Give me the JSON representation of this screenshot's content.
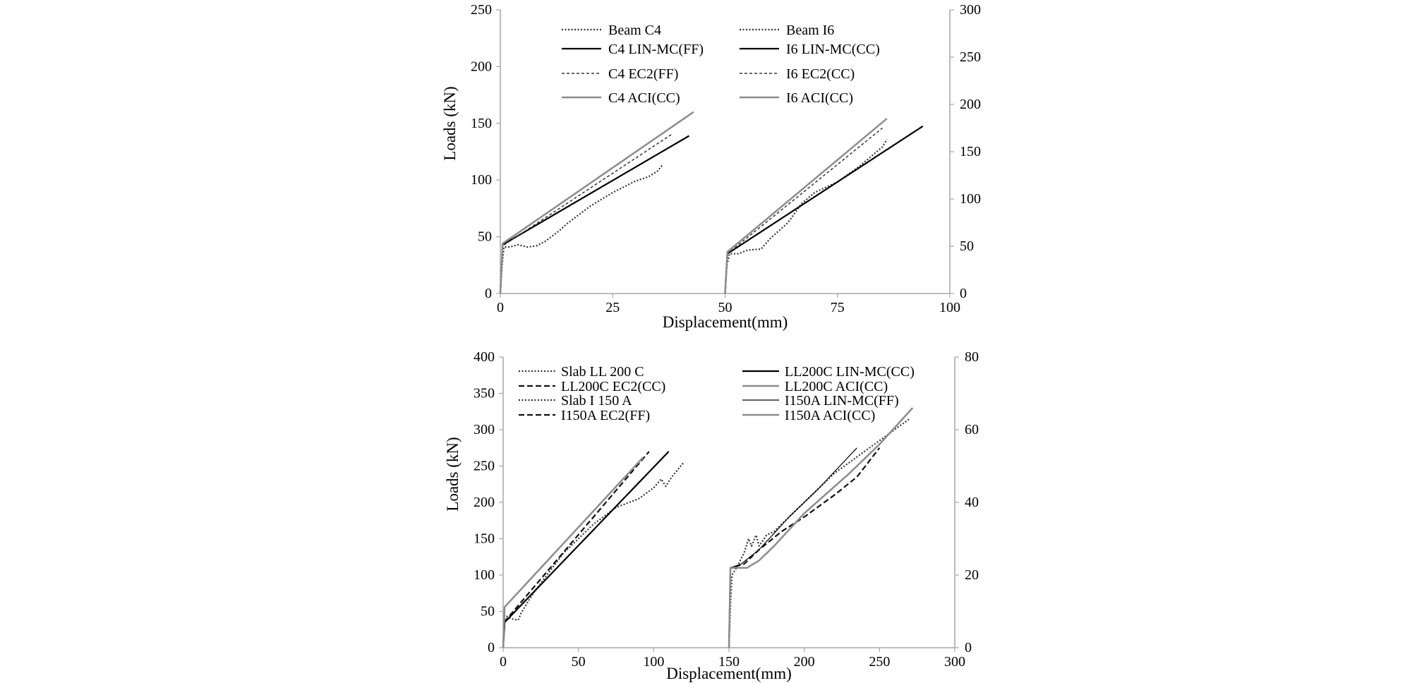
{
  "chart_data": [
    {
      "type": "line",
      "title": "",
      "xlabel": "Displacement(mm)",
      "ylabel": "Loads (kN)",
      "xlim": [
        0,
        100
      ],
      "ylim": [
        0,
        250
      ],
      "y2lim": [
        0,
        300
      ],
      "xticks": [
        "0",
        "25",
        "50",
        "75",
        "100"
      ],
      "yticks": [
        "0",
        "50",
        "100",
        "150",
        "200",
        "250"
      ],
      "y2ticks": [
        "0",
        "50",
        "100",
        "150",
        "200",
        "250",
        "300"
      ],
      "grid": false,
      "legend": "top",
      "series": [
        {
          "name": "Beam C4",
          "color": "#333333",
          "dash": "2,2.5",
          "width": 2.2,
          "axis": "left",
          "points": [
            [
              0,
              0
            ],
            [
              0.4,
              25
            ],
            [
              0.8,
              41
            ],
            [
              2,
              41
            ],
            [
              4,
              43
            ],
            [
              6,
              41
            ],
            [
              8,
              42
            ],
            [
              10,
              46
            ],
            [
              13,
              55
            ],
            [
              15,
              62
            ],
            [
              20,
              77
            ],
            [
              25,
              89
            ],
            [
              30,
              99
            ],
            [
              33,
              103
            ],
            [
              35,
              108
            ],
            [
              36,
              113
            ]
          ]
        },
        {
          "name": "C4 LIN-MC(FF)",
          "color": "#000000",
          "dash": "",
          "width": 2.2,
          "axis": "left",
          "points": [
            [
              0,
              0
            ],
            [
              0.5,
              43
            ],
            [
              42,
              139
            ]
          ]
        },
        {
          "name": "C4 EC2(FF)",
          "color": "#333333",
          "dash": "4,3",
          "width": 1.5,
          "axis": "left",
          "points": [
            [
              0,
              0
            ],
            [
              0.5,
              42
            ],
            [
              38,
              140
            ]
          ]
        },
        {
          "name": "C4 ACI(CC)",
          "color": "#8c8c8c",
          "dash": "",
          "width": 2.5,
          "axis": "left",
          "points": [
            [
              0,
              0
            ],
            [
              0.5,
              44
            ],
            [
              43,
              160
            ]
          ]
        },
        {
          "name": "Beam I6",
          "color": "#333333",
          "dash": "2,2.5",
          "width": 2.2,
          "axis": "right",
          "points": [
            [
              50,
              0
            ],
            [
              50.4,
              30
            ],
            [
              51,
              42
            ],
            [
              53,
              42
            ],
            [
              55,
              46
            ],
            [
              58,
              47
            ],
            [
              60,
              58
            ],
            [
              64,
              75
            ],
            [
              67,
              95
            ],
            [
              70,
              107
            ],
            [
              75,
              118
            ],
            [
              80,
              135
            ],
            [
              85,
              155
            ],
            [
              86,
              163
            ]
          ]
        },
        {
          "name": "I6 LIN-MC(CC)",
          "color": "#000000",
          "dash": "",
          "width": 2.2,
          "axis": "right",
          "points": [
            [
              50,
              0
            ],
            [
              50.5,
              42
            ],
            [
              94,
              177
            ]
          ]
        },
        {
          "name": "I6 EC2(CC)",
          "color": "#333333",
          "dash": "4,3",
          "width": 1.5,
          "axis": "right",
          "points": [
            [
              50,
              0
            ],
            [
              50.5,
              42
            ],
            [
              85,
              175
            ]
          ]
        },
        {
          "name": "I6 ACI(CC)",
          "color": "#8c8c8c",
          "dash": "",
          "width": 2.5,
          "axis": "right",
          "points": [
            [
              50,
              0
            ],
            [
              50.5,
              44
            ],
            [
              86,
              185
            ]
          ]
        }
      ]
    },
    {
      "type": "line",
      "title": "",
      "xlabel": "Displacement(mm)",
      "ylabel": "Loads (kN)",
      "xlim": [
        0,
        300
      ],
      "ylim": [
        0,
        400
      ],
      "y2lim": [
        0,
        80
      ],
      "xticks": [
        "0",
        "50",
        "100",
        "150",
        "200",
        "250",
        "300"
      ],
      "yticks": [
        "0",
        "50",
        "100",
        "150",
        "200",
        "250",
        "300",
        "350",
        "400"
      ],
      "y2ticks": [
        "0",
        "20",
        "40",
        "60",
        "80"
      ],
      "grid": false,
      "legend": "top",
      "series": [
        {
          "name": "Slab LL 200 C",
          "color": "#333333",
          "dash": "2,2.5",
          "width": 2.2,
          "axis": "left",
          "points": [
            [
              0,
              0
            ],
            [
              1,
              45
            ],
            [
              5,
              40
            ],
            [
              10,
              38
            ],
            [
              12,
              48
            ],
            [
              20,
              75
            ],
            [
              40,
              130
            ],
            [
              60,
              170
            ],
            [
              75,
              193
            ],
            [
              90,
              205
            ],
            [
              100,
              220
            ],
            [
              105,
              232
            ],
            [
              108,
              222
            ],
            [
              112,
              235
            ],
            [
              120,
              255
            ]
          ]
        },
        {
          "name": "LL200C EC2(CC)",
          "color": "#111111",
          "dash": "8,4",
          "width": 2.2,
          "axis": "left",
          "points": [
            [
              0,
              0
            ],
            [
              1,
              36
            ],
            [
              97,
              270
            ]
          ]
        },
        {
          "name": "Slab I 150 A",
          "color": "#333333",
          "dash": "2,2.5",
          "width": 2.2,
          "axis": "right",
          "points": [
            [
              150,
              0
            ],
            [
              151,
              12
            ],
            [
              152,
              20
            ],
            [
              155,
              22
            ],
            [
              160,
              26
            ],
            [
              163,
              30
            ],
            [
              165,
              28
            ],
            [
              168,
              31
            ],
            [
              170,
              28
            ],
            [
              175,
              31
            ],
            [
              180,
              32
            ],
            [
              190,
              36
            ],
            [
              200,
              40
            ],
            [
              210,
              44
            ],
            [
              220,
              48
            ],
            [
              230,
              51
            ],
            [
              240,
              54
            ],
            [
              250,
              57
            ],
            [
              260,
              60
            ],
            [
              270,
              63
            ]
          ]
        },
        {
          "name": "I150A EC2(FF)",
          "color": "#111111",
          "dash": "8,4",
          "width": 2.2,
          "axis": "right",
          "points": [
            [
              150,
              0
            ],
            [
              151,
              22
            ],
            [
              160,
              23
            ],
            [
              170,
              27
            ],
            [
              185,
              32
            ],
            [
              200,
              36
            ],
            [
              220,
              42
            ],
            [
              235,
              47
            ],
            [
              250,
              55
            ]
          ]
        },
        {
          "name": "LL200C LIN-MC(CC)",
          "color": "#000000",
          "dash": "",
          "width": 2.2,
          "axis": "left",
          "points": [
            [
              0,
              0
            ],
            [
              1,
              35
            ],
            [
              110,
              270
            ]
          ]
        },
        {
          "name": "LL200C ACI(CC)",
          "color": "#8c8c8c",
          "dash": "",
          "width": 2.5,
          "axis": "left",
          "points": [
            [
              0,
              0
            ],
            [
              1,
              56
            ],
            [
              93,
              262
            ]
          ]
        },
        {
          "name": "I150A LIN-MC(FF)",
          "color": "#000000",
          "dash": "",
          "width": 1.2,
          "axis": "right",
          "points": [
            [
              150,
              0
            ],
            [
              151,
              22
            ],
            [
              158,
              23
            ],
            [
              170,
              27
            ],
            [
              190,
              36
            ],
            [
              210,
              44
            ],
            [
              235,
              55
            ]
          ]
        },
        {
          "name": "I150A ACI(CC)",
          "color": "#8c8c8c",
          "dash": "",
          "width": 2.5,
          "axis": "right",
          "points": [
            [
              150,
              0
            ],
            [
              151,
              22
            ],
            [
              162,
              22
            ],
            [
              170,
              24
            ],
            [
              180,
              28
            ],
            [
              200,
              37
            ],
            [
              230,
              48
            ],
            [
              250,
              56
            ],
            [
              272,
              66
            ]
          ]
        }
      ]
    }
  ]
}
